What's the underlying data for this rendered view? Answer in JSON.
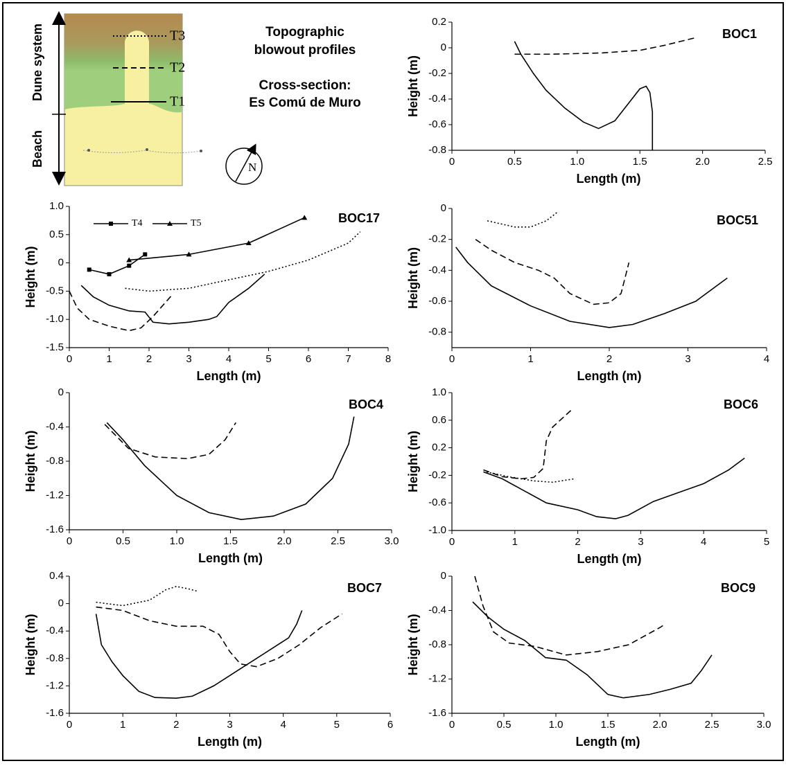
{
  "schematic": {
    "zones": [
      "Dune system",
      "Beach"
    ],
    "transects": [
      "T3",
      "T2",
      "T1"
    ],
    "north": "N",
    "title": [
      "Topographic",
      "blowout profiles"
    ],
    "subtitle": [
      "Cross-section:",
      "Es Comú de Muro"
    ]
  },
  "chart_data": [
    {
      "type": "line",
      "title": "BOC1",
      "x_label": "Length (m)",
      "y_label": "Height (m)",
      "xlim": [
        0,
        2.5
      ],
      "xticks": [
        0,
        0.5,
        {
          "value": 1,
          "label": "1.0"
        },
        1.5,
        {
          "value": 2,
          "label": "2.0"
        },
        2.5
      ],
      "ylim": [
        -0.8,
        0.2
      ],
      "yticks": [
        -0.8,
        -0.6,
        -0.4,
        -0.2,
        0,
        0.2
      ],
      "series": [
        {
          "style": "solid",
          "color": "#000000",
          "x": [
            0.5,
            0.55,
            0.65,
            0.75,
            0.9,
            1.05,
            1.17,
            1.3,
            1.42,
            1.5,
            1.55,
            1.58,
            1.6,
            1.6
          ],
          "values": [
            0.05,
            -0.05,
            -0.2,
            -0.33,
            -0.47,
            -0.58,
            -0.63,
            -0.57,
            -0.42,
            -0.32,
            -0.3,
            -0.35,
            -0.5,
            -0.8
          ]
        },
        {
          "style": "dashed",
          "color": "#000000",
          "x": [
            0.5,
            0.8,
            1.2,
            1.5,
            1.7,
            1.95
          ],
          "values": [
            -0.05,
            -0.05,
            -0.04,
            -0.02,
            0.02,
            0.08
          ]
        }
      ]
    },
    {
      "type": "line",
      "title": "BOC17",
      "x_label": "Length (m)",
      "y_label": "Height (m)",
      "xlim": [
        0,
        8
      ],
      "xticks": [
        0,
        1,
        2,
        3,
        4,
        5,
        6,
        7,
        8
      ],
      "ylim": [
        -1.5,
        1
      ],
      "yticks": [
        -1.5,
        {
          "value": -1,
          "label": "-1.0"
        },
        -0.5,
        0,
        0.5,
        {
          "value": 1,
          "label": "1.0"
        }
      ],
      "series": [
        {
          "name": "T4",
          "marker": "square",
          "style": "solid",
          "color": "#000000",
          "x": [
            0.5,
            1,
            1.5,
            1.9
          ],
          "values": [
            -0.12,
            -0.2,
            -0.05,
            0.15
          ]
        },
        {
          "name": "T5",
          "marker": "triangle",
          "style": "solid",
          "color": "#000000",
          "x": [
            1.5,
            3,
            4.5,
            5.9
          ],
          "values": [
            0.05,
            0.15,
            0.35,
            0.8
          ]
        },
        {
          "style": "solid",
          "color": "#000000",
          "x": [
            0.3,
            0.6,
            1,
            1.5,
            1.9,
            2.1,
            2.5,
            3,
            3.5,
            3.7,
            4,
            4.5,
            4.9
          ],
          "values": [
            -0.4,
            -0.6,
            -0.75,
            -0.85,
            -0.87,
            -1.05,
            -1.08,
            -1.05,
            -1.0,
            -0.95,
            -0.7,
            -0.45,
            -0.2
          ]
        },
        {
          "style": "dashed",
          "color": "#000000",
          "x": [
            0,
            0.2,
            0.5,
            1,
            1.5,
            1.8,
            2.1,
            2.6
          ],
          "values": [
            -0.5,
            -0.8,
            -1.0,
            -1.12,
            -1.2,
            -1.15,
            -0.95,
            -0.55
          ]
        },
        {
          "style": "dotted",
          "color": "#000000",
          "x": [
            1.4,
            2,
            3,
            4,
            5,
            6,
            7,
            7.3
          ],
          "values": [
            -0.45,
            -0.5,
            -0.45,
            -0.3,
            -0.15,
            0.05,
            0.35,
            0.55
          ]
        }
      ]
    },
    {
      "type": "line",
      "title": "BOC51",
      "x_label": "Length (m)",
      "y_label": "Height (m)",
      "xlim": [
        0,
        4
      ],
      "xticks": [
        0,
        1,
        2,
        3,
        4
      ],
      "ylim": [
        -0.9,
        0
      ],
      "yticks": [
        -0.8,
        -0.6,
        -0.4,
        -0.2,
        0
      ],
      "series": [
        {
          "style": "solid",
          "color": "#000000",
          "x": [
            0.05,
            0.2,
            0.5,
            1,
            1.5,
            2,
            2.3,
            2.7,
            3.1,
            3.5
          ],
          "values": [
            -0.25,
            -0.35,
            -0.5,
            -0.63,
            -0.73,
            -0.77,
            -0.75,
            -0.68,
            -0.6,
            -0.45
          ]
        },
        {
          "style": "dashed",
          "color": "#000000",
          "x": [
            0.3,
            0.5,
            0.8,
            1.1,
            1.3,
            1.5,
            1.8,
            2.0,
            2.15,
            2.25
          ],
          "values": [
            -0.2,
            -0.27,
            -0.35,
            -0.4,
            -0.45,
            -0.55,
            -0.62,
            -0.61,
            -0.55,
            -0.35
          ]
        },
        {
          "style": "dotted",
          "color": "#000000",
          "x": [
            0.45,
            0.8,
            1.0,
            1.2,
            1.35
          ],
          "values": [
            -0.08,
            -0.12,
            -0.12,
            -0.08,
            -0.02
          ]
        }
      ]
    },
    {
      "type": "line",
      "title": "BOC4",
      "x_label": "Length (m)",
      "y_label": "Height (m)",
      "xlim": [
        0,
        3
      ],
      "xticks": [
        0,
        0.5,
        {
          "value": 1,
          "label": "1.0"
        },
        1.5,
        {
          "value": 2,
          "label": "2.0"
        },
        2.5,
        {
          "value": 3,
          "label": "3.0"
        }
      ],
      "ylim": [
        -1.6,
        0
      ],
      "yticks": [
        -1.6,
        -1.2,
        -0.8,
        -0.4,
        0
      ],
      "series": [
        {
          "style": "solid",
          "color": "#000000",
          "x": [
            0.35,
            0.5,
            0.7,
            1,
            1.3,
            1.6,
            1.9,
            2.2,
            2.45,
            2.6,
            2.65
          ],
          "values": [
            -0.35,
            -0.55,
            -0.85,
            -1.2,
            -1.4,
            -1.48,
            -1.44,
            -1.3,
            -1.0,
            -0.6,
            -0.28
          ]
        },
        {
          "style": "dashed",
          "color": "#000000",
          "x": [
            0.33,
            0.55,
            0.8,
            1.1,
            1.3,
            1.45,
            1.55
          ],
          "values": [
            -0.37,
            -0.65,
            -0.75,
            -0.77,
            -0.72,
            -0.55,
            -0.35
          ]
        }
      ]
    },
    {
      "type": "line",
      "title": "BOC6",
      "x_label": "Length (m)",
      "y_label": "Height (m)",
      "xlim": [
        0,
        5
      ],
      "xticks": [
        0,
        1,
        2,
        3,
        4,
        5
      ],
      "ylim": [
        -1,
        1
      ],
      "yticks": [
        {
          "value": -1,
          "label": "-1.0"
        },
        -0.6,
        -0.2,
        0.2,
        0.6,
        {
          "value": 1,
          "label": "1.0"
        }
      ],
      "series": [
        {
          "style": "solid",
          "color": "#000000",
          "x": [
            0.5,
            0.8,
            1.1,
            1.5,
            2,
            2.3,
            2.6,
            2.8,
            3.2,
            3.6,
            4,
            4.4,
            4.65
          ],
          "values": [
            -0.15,
            -0.25,
            -0.4,
            -0.6,
            -0.7,
            -0.8,
            -0.83,
            -0.78,
            -0.58,
            -0.45,
            -0.32,
            -0.12,
            0.05
          ]
        },
        {
          "style": "dashed",
          "color": "#000000",
          "x": [
            0.5,
            0.8,
            1.1,
            1.3,
            1.45,
            1.5,
            1.6,
            1.9
          ],
          "values": [
            -0.12,
            -0.22,
            -0.25,
            -0.23,
            -0.1,
            0.3,
            0.5,
            0.75
          ]
        },
        {
          "style": "dotted",
          "color": "#000000",
          "x": [
            0.55,
            0.9,
            1.3,
            1.6,
            1.95
          ],
          "values": [
            -0.15,
            -0.22,
            -0.28,
            -0.3,
            -0.25
          ]
        }
      ]
    },
    {
      "type": "line",
      "title": "BOC7",
      "x_label": "Length (m)",
      "y_label": "Height (m)",
      "xlim": [
        0,
        6
      ],
      "xticks": [
        0,
        1,
        2,
        3,
        4,
        5,
        6
      ],
      "ylim": [
        -1.6,
        0.4
      ],
      "yticks": [
        -1.6,
        -1.2,
        -0.8,
        -0.4,
        0,
        0.4
      ],
      "series": [
        {
          "style": "solid",
          "color": "#000000",
          "x": [
            0.5,
            0.6,
            0.8,
            1,
            1.3,
            1.6,
            2,
            2.3,
            2.7,
            3.1,
            3.5,
            3.8,
            4.1,
            4.25,
            4.35
          ],
          "values": [
            -0.15,
            -0.6,
            -0.85,
            -1.05,
            -1.28,
            -1.37,
            -1.38,
            -1.35,
            -1.2,
            -1.0,
            -0.8,
            -0.65,
            -0.5,
            -0.3,
            -0.1
          ]
        },
        {
          "style": "dashed",
          "color": "#000000",
          "x": [
            0.5,
            1,
            1.5,
            2,
            2.5,
            2.8,
            3.0,
            3.2,
            3.5,
            3.9,
            4.3,
            4.7,
            5.1
          ],
          "values": [
            -0.05,
            -0.1,
            -0.25,
            -0.33,
            -0.33,
            -0.45,
            -0.7,
            -0.88,
            -0.92,
            -0.8,
            -0.6,
            -0.35,
            -0.15
          ]
        },
        {
          "style": "dotted",
          "color": "#000000",
          "x": [
            0.5,
            1,
            1.5,
            1.8,
            2,
            2.2,
            2.4
          ],
          "values": [
            0.02,
            -0.03,
            0.05,
            0.2,
            0.25,
            0.22,
            0.18
          ]
        }
      ]
    },
    {
      "type": "line",
      "title": "BOC9",
      "x_label": "Length (m)",
      "y_label": "Height (m)",
      "xlim": [
        0,
        3
      ],
      "xticks": [
        0,
        0.5,
        {
          "value": 1,
          "label": "1.0"
        },
        1.5,
        {
          "value": 2,
          "label": "2.0"
        },
        2.5,
        {
          "value": 3,
          "label": "3.0"
        }
      ],
      "ylim": [
        -1.6,
        0
      ],
      "yticks": [
        -1.6,
        -1.2,
        -0.8,
        -0.4,
        0
      ],
      "series": [
        {
          "style": "solid",
          "color": "#000000",
          "x": [
            0.2,
            0.35,
            0.5,
            0.7,
            0.9,
            1.1,
            1.3,
            1.5,
            1.65,
            1.9,
            2.1,
            2.3,
            2.4,
            2.5
          ],
          "values": [
            -0.3,
            -0.48,
            -0.62,
            -0.75,
            -0.95,
            -0.98,
            -1.15,
            -1.38,
            -1.42,
            -1.38,
            -1.32,
            -1.25,
            -1.1,
            -0.92
          ]
        },
        {
          "style": "dashed",
          "color": "#000000",
          "x": [
            0.22,
            0.3,
            0.4,
            0.55,
            0.8,
            1.1,
            1.4,
            1.7,
            2.0,
            2.05
          ],
          "values": [
            0,
            -0.35,
            -0.65,
            -0.78,
            -0.82,
            -0.92,
            -0.88,
            -0.8,
            -0.6,
            -0.56
          ]
        }
      ]
    }
  ]
}
